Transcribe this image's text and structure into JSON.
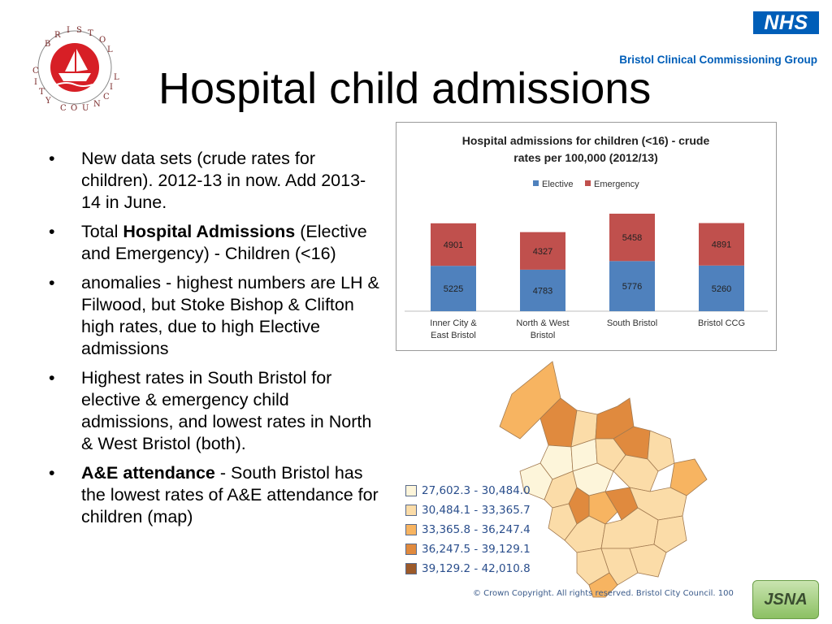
{
  "slide": {
    "title": "Hospital child admissions",
    "logo_text": "BRISTOL CITY COUNCIL",
    "nhs_badge": "NHS",
    "ccg_name": "Bristol Clinical Commissioning Group",
    "jsna_badge": "JSNA"
  },
  "bullets": [
    {
      "bold": "",
      "text": "New data sets (crude rates for children).  2012-13 in now.  Add 2013-14 in June."
    },
    {
      "prefix": "Total ",
      "bold": "Hospital Admissions",
      "text": " (Elective and Emergency) - Children (<16)"
    },
    {
      "bold": "",
      "text": "anomalies - highest numbers are LH & Filwood, but Stoke Bishop & Clifton high rates, due to high Elective admissions"
    },
    {
      "bold": "",
      "text": "Highest rates in South Bristol for elective & emergency child admissions, and lowest rates in North & West Bristol (both)."
    },
    {
      "prefix": "",
      "bold": "A&E attendance",
      "text": " - South Bristol has the lowest rates of A&E attendance for children  (map)"
    }
  ],
  "chart_data": {
    "type": "bar",
    "stacked": true,
    "title": "Hospital admissions for children (<16) - crude rates per 100,000 (2012/13)",
    "categories": [
      "Inner City & East Bristol",
      "North & West Bristol",
      "South Bristol",
      "Bristol CCG"
    ],
    "series": [
      {
        "name": "Elective",
        "color": "#4f81bd",
        "values": [
          5225,
          4783,
          5776,
          5260
        ]
      },
      {
        "name": "Emergency",
        "color": "#c0504d",
        "values": [
          4901,
          4327,
          5458,
          4891
        ]
      }
    ],
    "legend": "top",
    "grid": false
  },
  "map": {
    "legend": [
      {
        "label": "27,602.3 - 30,484.0",
        "color": "#fdf5da"
      },
      {
        "label": "30,484.1 - 33,365.7",
        "color": "#fbdca8"
      },
      {
        "label": "33,365.8 - 36,247.4",
        "color": "#f7b461"
      },
      {
        "label": "36,247.5 - 39,129.1",
        "color": "#e08a3e"
      },
      {
        "label": "39,129.2 - 42,010.8",
        "color": "#9c5a2a"
      }
    ],
    "copyright": "© Crown Copyright. All rights reserved. Bristol City Council. 100"
  }
}
